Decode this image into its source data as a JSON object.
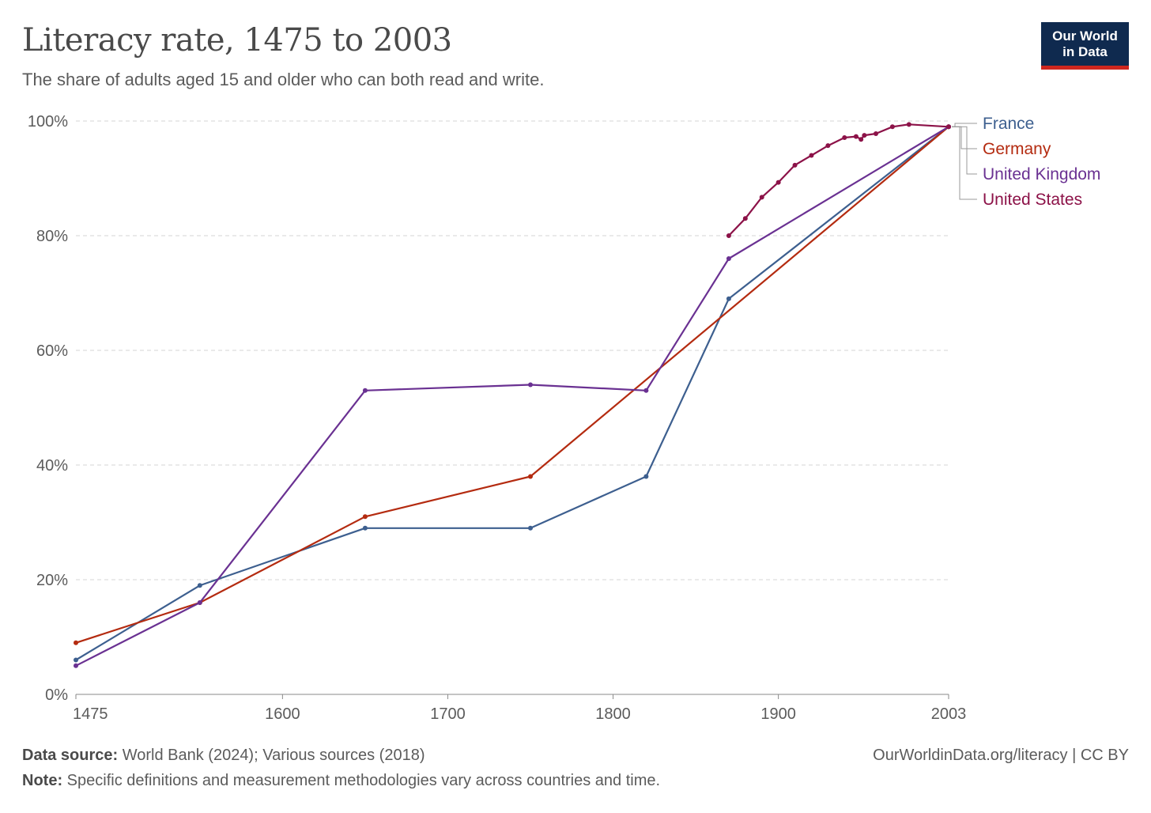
{
  "header": {
    "title": "Literacy rate, 1475 to 2003",
    "subtitle": "The share of adults aged 15 and older who can both read and write.",
    "logo_line1": "Our World",
    "logo_line2": "in Data"
  },
  "footer": {
    "source_label": "Data source:",
    "source_text": "World Bank (2024); Various sources (2018)",
    "note_label": "Note:",
    "note_text": "Specific definitions and measurement methodologies vary across countries and time.",
    "credit": "OurWorldinData.org/literacy | CC BY"
  },
  "chart_data": {
    "type": "line",
    "xlim": [
      1475,
      2003
    ],
    "ylim": [
      0,
      100
    ],
    "x_ticks": [
      1475,
      1600,
      1700,
      1800,
      1900,
      2003
    ],
    "y_ticks": [
      0,
      20,
      40,
      60,
      80,
      100
    ],
    "y_tick_labels": [
      "0%",
      "20%",
      "40%",
      "60%",
      "80%",
      "100%"
    ],
    "grid": "horizontal dashed",
    "legend_placement": "right",
    "series": [
      {
        "name": "France",
        "color": "#3d5f8f",
        "points": [
          [
            1475,
            6
          ],
          [
            1550,
            19
          ],
          [
            1650,
            29
          ],
          [
            1750,
            29
          ],
          [
            1820,
            38
          ],
          [
            1870,
            69
          ],
          [
            2003,
            99
          ]
        ]
      },
      {
        "name": "Germany",
        "color": "#b42b10",
        "points": [
          [
            1475,
            9
          ],
          [
            1550,
            16
          ],
          [
            1650,
            31
          ],
          [
            1750,
            38
          ],
          [
            2003,
            99
          ]
        ]
      },
      {
        "name": "United Kingdom",
        "color": "#6a3192",
        "points": [
          [
            1475,
            5
          ],
          [
            1550,
            16
          ],
          [
            1650,
            53
          ],
          [
            1750,
            54
          ],
          [
            1820,
            53
          ],
          [
            1870,
            76
          ],
          [
            2003,
            99
          ]
        ]
      },
      {
        "name": "United States",
        "color": "#8c1248",
        "points": [
          [
            1870,
            80
          ],
          [
            1880,
            83
          ],
          [
            1890,
            86.7
          ],
          [
            1900,
            89.3
          ],
          [
            1910,
            92.3
          ],
          [
            1920,
            94
          ],
          [
            1930,
            95.7
          ],
          [
            1940,
            97.1
          ],
          [
            1947,
            97.3
          ],
          [
            1950,
            96.8
          ],
          [
            1952,
            97.5
          ],
          [
            1959,
            97.8
          ],
          [
            1969,
            99
          ],
          [
            1979,
            99.4
          ],
          [
            2003,
            99
          ]
        ]
      }
    ]
  }
}
